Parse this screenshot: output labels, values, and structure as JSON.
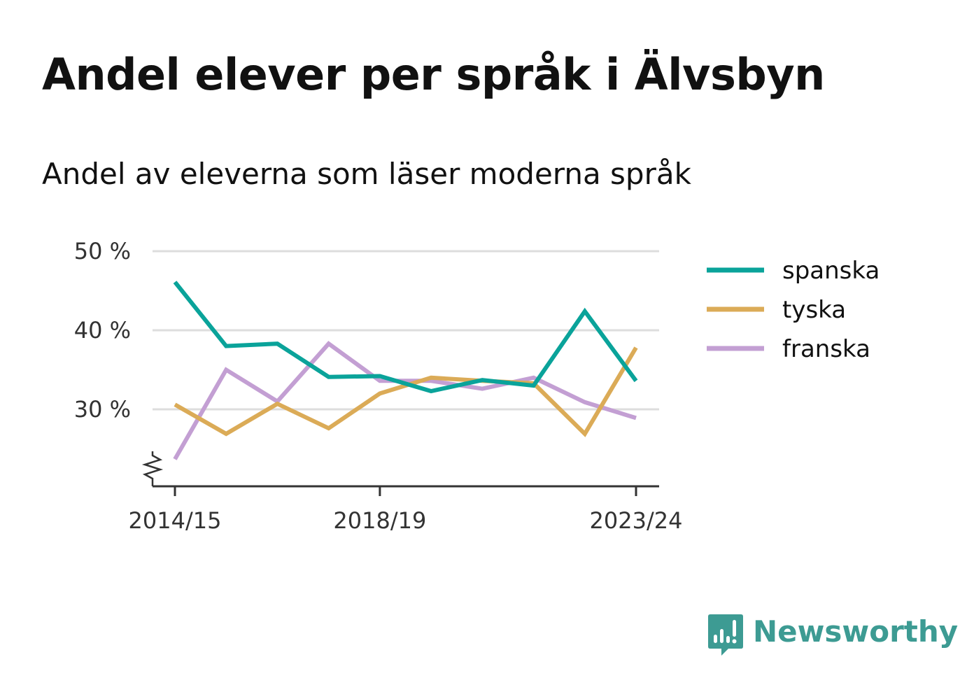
{
  "title": "Andel elever per språk i Älvsbyn",
  "subtitle": "Andel av eleverna som läser moderna språk",
  "brand": {
    "name": "Newsworthy",
    "icon": "newsworthy-chart-bubble-icon",
    "color": "#3d9b93"
  },
  "chart_data": {
    "type": "line",
    "x": [
      "2014/15",
      "2015/16",
      "2016/17",
      "2017/18",
      "2018/19",
      "2019/20",
      "2020/21",
      "2021/22",
      "2022/23",
      "2023/24"
    ],
    "x_tick_labels": [
      "2014/15",
      "2018/19",
      "2023/24"
    ],
    "y_tick_labels": [
      "30 %",
      "40 %",
      "50 %"
    ],
    "y_ticks": [
      30,
      40,
      50
    ],
    "ylim": [
      20.5,
      50
    ],
    "y_axis_break": true,
    "grid": true,
    "legend_position": "right",
    "series": [
      {
        "name": "spanska",
        "color": "#0aa39a",
        "values": [
          46.1,
          38.0,
          38.3,
          34.1,
          34.2,
          32.3,
          33.7,
          33.0,
          42.4,
          33.6
        ]
      },
      {
        "name": "tyska",
        "color": "#dbab57",
        "values": [
          30.6,
          26.9,
          30.7,
          27.6,
          32.0,
          34.0,
          33.6,
          33.3,
          26.9,
          37.8
        ]
      },
      {
        "name": "franska",
        "color": "#c39fd3",
        "values": [
          23.7,
          35.0,
          31.0,
          38.3,
          33.6,
          33.6,
          32.6,
          34.0,
          30.9,
          28.9
        ]
      }
    ]
  }
}
